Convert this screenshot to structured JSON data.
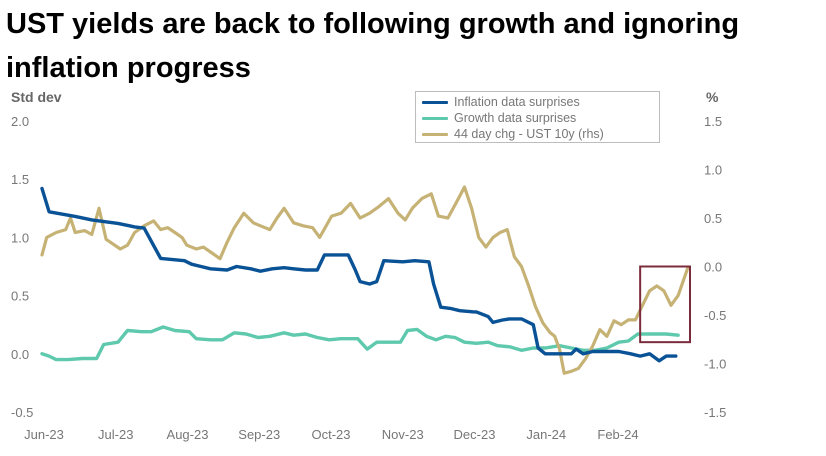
{
  "title": "UST yields are back to following growth and ignoring inflation progress",
  "left_axis_title": "Std dev",
  "right_axis_title": "%",
  "colors": {
    "inflation": "#0a5296",
    "growth": "#5ec9ad",
    "ust": "#c6b275",
    "box": "#7b2b3b"
  },
  "legend": [
    {
      "label": "Inflation data surprises",
      "color": "#0a5296"
    },
    {
      "label": "Growth data surprises",
      "color": "#5ec9ad"
    },
    {
      "label": "44 day chg - UST 10y (rhs)",
      "color": "#c6b275"
    }
  ],
  "chart_data": {
    "type": "line",
    "title": "UST yields are back to following growth and ignoring inflation progress",
    "x_ticks": [
      "Jun-23",
      "Jul-23",
      "Aug-23",
      "Sep-23",
      "Oct-23",
      "Nov-23",
      "Dec-23",
      "Jan-24",
      "Feb-24"
    ],
    "xlim": [
      "2023-06-01",
      "2024-02-29"
    ],
    "left_axis": {
      "label": "Std dev",
      "ylim": [
        -0.5,
        2.0
      ],
      "ticks": [
        "2.0",
        "1.5",
        "1.0",
        "0.5",
        "0.0",
        "-0.5"
      ]
    },
    "right_axis": {
      "label": "%",
      "ylim": [
        -1.5,
        1.5
      ],
      "ticks": [
        "1.5",
        "1.0",
        "0.5",
        "0.0",
        "-0.5",
        "-1.0",
        "-1.5"
      ]
    },
    "highlight_box": {
      "x_range": [
        "2024-02-08",
        "2024-02-29"
      ],
      "y_range_rhs": [
        -0.78,
        0.0
      ]
    },
    "series": [
      {
        "name": "Inflation data surprises",
        "axis": "left",
        "color": "#0a5296",
        "points": [
          [
            "2023-06-01",
            1.42
          ],
          [
            "2023-06-04",
            1.22
          ],
          [
            "2023-06-15",
            1.18
          ],
          [
            "2023-06-22",
            1.15
          ],
          [
            "2023-07-03",
            1.12
          ],
          [
            "2023-07-10",
            1.09
          ],
          [
            "2023-07-14",
            1.08
          ],
          [
            "2023-07-18",
            0.93
          ],
          [
            "2023-07-21",
            0.82
          ],
          [
            "2023-07-31",
            0.8
          ],
          [
            "2023-08-03",
            0.77
          ],
          [
            "2023-08-07",
            0.75
          ],
          [
            "2023-08-11",
            0.73
          ],
          [
            "2023-08-18",
            0.72
          ],
          [
            "2023-08-22",
            0.75
          ],
          [
            "2023-08-28",
            0.73
          ],
          [
            "2023-09-01",
            0.71
          ],
          [
            "2023-09-06",
            0.73
          ],
          [
            "2023-09-11",
            0.74
          ],
          [
            "2023-09-15",
            0.73
          ],
          [
            "2023-09-20",
            0.72
          ],
          [
            "2023-09-25",
            0.72
          ],
          [
            "2023-09-28",
            0.85
          ],
          [
            "2023-10-08",
            0.85
          ],
          [
            "2023-10-11",
            0.72
          ],
          [
            "2023-10-13",
            0.62
          ],
          [
            "2023-10-17",
            0.6
          ],
          [
            "2023-10-20",
            0.62
          ],
          [
            "2023-10-23",
            0.8
          ],
          [
            "2023-10-31",
            0.79
          ],
          [
            "2023-11-05",
            0.8
          ],
          [
            "2023-11-11",
            0.79
          ],
          [
            "2023-11-13",
            0.6
          ],
          [
            "2023-11-16",
            0.4
          ],
          [
            "2023-11-20",
            0.39
          ],
          [
            "2023-11-24",
            0.37
          ],
          [
            "2023-11-30",
            0.36
          ],
          [
            "2023-12-01",
            0.36
          ],
          [
            "2023-12-06",
            0.32
          ],
          [
            "2023-12-08",
            0.27
          ],
          [
            "2023-12-12",
            0.29
          ],
          [
            "2023-12-15",
            0.3
          ],
          [
            "2023-12-20",
            0.3
          ],
          [
            "2023-12-25",
            0.25
          ],
          [
            "2023-12-27",
            0.05
          ],
          [
            "2023-12-30",
            0.0
          ],
          [
            "2024-01-05",
            0.0
          ],
          [
            "2024-01-10",
            0.0
          ],
          [
            "2024-01-12",
            0.04
          ],
          [
            "2024-01-15",
            0.0
          ],
          [
            "2024-01-19",
            0.02
          ],
          [
            "2024-01-24",
            0.02
          ],
          [
            "2024-01-30",
            0.02
          ],
          [
            "2024-02-04",
            0.0
          ],
          [
            "2024-02-08",
            -0.02
          ],
          [
            "2024-02-12",
            0.0
          ],
          [
            "2024-02-16",
            -0.06
          ],
          [
            "2024-02-19",
            -0.02
          ],
          [
            "2024-02-23",
            -0.02
          ]
        ]
      },
      {
        "name": "Growth data surprises",
        "axis": "left",
        "color": "#5ec9ad",
        "points": [
          [
            "2023-06-01",
            0.0
          ],
          [
            "2023-06-04",
            -0.02
          ],
          [
            "2023-06-07",
            -0.05
          ],
          [
            "2023-06-12",
            -0.05
          ],
          [
            "2023-06-18",
            -0.04
          ],
          [
            "2023-06-24",
            -0.04
          ],
          [
            "2023-06-27",
            0.08
          ],
          [
            "2023-07-03",
            0.1
          ],
          [
            "2023-07-07",
            0.2
          ],
          [
            "2023-07-13",
            0.19
          ],
          [
            "2023-07-17",
            0.19
          ],
          [
            "2023-07-22",
            0.23
          ],
          [
            "2023-07-27",
            0.2
          ],
          [
            "2023-08-02",
            0.19
          ],
          [
            "2023-08-05",
            0.13
          ],
          [
            "2023-08-11",
            0.12
          ],
          [
            "2023-08-16",
            0.12
          ],
          [
            "2023-08-21",
            0.18
          ],
          [
            "2023-08-26",
            0.17
          ],
          [
            "2023-08-31",
            0.14
          ],
          [
            "2023-09-05",
            0.15
          ],
          [
            "2023-09-11",
            0.18
          ],
          [
            "2023-09-15",
            0.16
          ],
          [
            "2023-09-20",
            0.17
          ],
          [
            "2023-09-25",
            0.14
          ],
          [
            "2023-09-30",
            0.12
          ],
          [
            "2023-10-05",
            0.13
          ],
          [
            "2023-10-12",
            0.13
          ],
          [
            "2023-10-16",
            0.04
          ],
          [
            "2023-10-20",
            0.1
          ],
          [
            "2023-10-25",
            0.1
          ],
          [
            "2023-10-30",
            0.1
          ],
          [
            "2023-11-02",
            0.2
          ],
          [
            "2023-11-06",
            0.21
          ],
          [
            "2023-11-10",
            0.15
          ],
          [
            "2023-11-14",
            0.12
          ],
          [
            "2023-11-18",
            0.15
          ],
          [
            "2023-11-22",
            0.14
          ],
          [
            "2023-11-26",
            0.1
          ],
          [
            "2023-12-01",
            0.09
          ],
          [
            "2023-12-06",
            0.1
          ],
          [
            "2023-12-10",
            0.07
          ],
          [
            "2023-12-15",
            0.06
          ],
          [
            "2023-12-20",
            0.03
          ],
          [
            "2023-12-25",
            0.05
          ],
          [
            "2023-12-30",
            0.05
          ],
          [
            "2024-01-05",
            0.07
          ],
          [
            "2024-01-10",
            0.05
          ],
          [
            "2024-01-15",
            0.03
          ],
          [
            "2024-01-20",
            0.03
          ],
          [
            "2024-01-25",
            0.05
          ],
          [
            "2024-01-30",
            0.1
          ],
          [
            "2024-02-03",
            0.11
          ],
          [
            "2024-02-07",
            0.17
          ],
          [
            "2024-02-13",
            0.17
          ],
          [
            "2024-02-19",
            0.17
          ],
          [
            "2024-02-24",
            0.16
          ]
        ]
      },
      {
        "name": "44 day chg - UST 10y (rhs)",
        "axis": "right",
        "color": "#c6b275",
        "points": [
          [
            "2023-06-01",
            0.12
          ],
          [
            "2023-06-03",
            0.3
          ],
          [
            "2023-06-07",
            0.35
          ],
          [
            "2023-06-11",
            0.38
          ],
          [
            "2023-06-13",
            0.5
          ],
          [
            "2023-06-15",
            0.35
          ],
          [
            "2023-06-19",
            0.37
          ],
          [
            "2023-06-22",
            0.33
          ],
          [
            "2023-06-25",
            0.6
          ],
          [
            "2023-06-28",
            0.28
          ],
          [
            "2023-07-04",
            0.18
          ],
          [
            "2023-07-07",
            0.22
          ],
          [
            "2023-07-10",
            0.35
          ],
          [
            "2023-07-14",
            0.42
          ],
          [
            "2023-07-18",
            0.47
          ],
          [
            "2023-07-21",
            0.38
          ],
          [
            "2023-07-24",
            0.4
          ],
          [
            "2023-07-27",
            0.35
          ],
          [
            "2023-07-30",
            0.3
          ],
          [
            "2023-08-01",
            0.22
          ],
          [
            "2023-08-05",
            0.18
          ],
          [
            "2023-08-08",
            0.2
          ],
          [
            "2023-08-11",
            0.15
          ],
          [
            "2023-08-15",
            0.08
          ],
          [
            "2023-08-18",
            0.25
          ],
          [
            "2023-08-21",
            0.4
          ],
          [
            "2023-08-25",
            0.55
          ],
          [
            "2023-08-29",
            0.45
          ],
          [
            "2023-09-01",
            0.42
          ],
          [
            "2023-09-05",
            0.38
          ],
          [
            "2023-09-08",
            0.5
          ],
          [
            "2023-09-11",
            0.6
          ],
          [
            "2023-09-15",
            0.45
          ],
          [
            "2023-09-19",
            0.42
          ],
          [
            "2023-09-23",
            0.4
          ],
          [
            "2023-09-26",
            0.3
          ],
          [
            "2023-10-01",
            0.52
          ],
          [
            "2023-10-05",
            0.55
          ],
          [
            "2023-10-09",
            0.65
          ],
          [
            "2023-10-13",
            0.5
          ],
          [
            "2023-10-17",
            0.55
          ],
          [
            "2023-10-21",
            0.62
          ],
          [
            "2023-10-25",
            0.7
          ],
          [
            "2023-10-29",
            0.55
          ],
          [
            "2023-11-01",
            0.48
          ],
          [
            "2023-11-04",
            0.6
          ],
          [
            "2023-11-08",
            0.7
          ],
          [
            "2023-11-12",
            0.75
          ],
          [
            "2023-11-15",
            0.52
          ],
          [
            "2023-11-19",
            0.5
          ],
          [
            "2023-11-23",
            0.68
          ],
          [
            "2023-11-26",
            0.82
          ],
          [
            "2023-11-29",
            0.6
          ],
          [
            "2023-12-02",
            0.3
          ],
          [
            "2023-12-05",
            0.2
          ],
          [
            "2023-12-08",
            0.3
          ],
          [
            "2023-12-11",
            0.35
          ],
          [
            "2023-12-14",
            0.38
          ],
          [
            "2023-12-17",
            0.1
          ],
          [
            "2023-12-20",
            0.0
          ],
          [
            "2023-12-23",
            -0.2
          ],
          [
            "2023-12-26",
            -0.42
          ],
          [
            "2023-12-29",
            -0.58
          ],
          [
            "2024-01-01",
            -0.68
          ],
          [
            "2024-01-03",
            -0.72
          ],
          [
            "2024-01-05",
            -0.85
          ],
          [
            "2024-01-07",
            -1.1
          ],
          [
            "2024-01-10",
            -1.08
          ],
          [
            "2024-01-13",
            -1.05
          ],
          [
            "2024-01-16",
            -0.95
          ],
          [
            "2024-01-19",
            -0.82
          ],
          [
            "2024-01-22",
            -0.65
          ],
          [
            "2024-01-25",
            -0.72
          ],
          [
            "2024-01-28",
            -0.56
          ],
          [
            "2024-01-31",
            -0.6
          ],
          [
            "2024-02-03",
            -0.55
          ],
          [
            "2024-02-06",
            -0.55
          ],
          [
            "2024-02-09",
            -0.4
          ],
          [
            "2024-02-12",
            -0.25
          ],
          [
            "2024-02-15",
            -0.2
          ],
          [
            "2024-02-18",
            -0.25
          ],
          [
            "2024-02-21",
            -0.4
          ],
          [
            "2024-02-24",
            -0.3
          ],
          [
            "2024-02-28",
            -0.02
          ]
        ]
      }
    ]
  }
}
